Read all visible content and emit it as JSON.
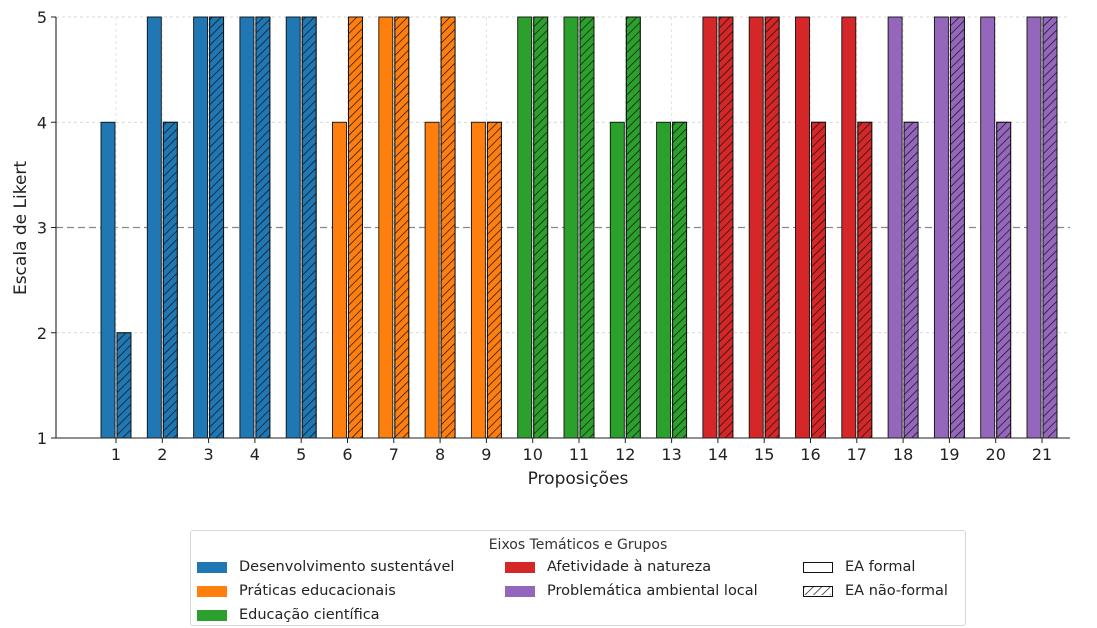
{
  "chart_data": {
    "type": "bar",
    "xlabel": "Proposições",
    "ylabel": "Escala de Likert",
    "ylim": [
      1,
      5
    ],
    "yticks": [
      1,
      2,
      3,
      4,
      5
    ],
    "reference_line": 3,
    "grid": true,
    "categories": [
      "1",
      "2",
      "3",
      "4",
      "5",
      "6",
      "7",
      "8",
      "9",
      "10",
      "11",
      "12",
      "13",
      "14",
      "15",
      "16",
      "17",
      "18",
      "19",
      "20",
      "21"
    ],
    "category_group": [
      0,
      0,
      0,
      0,
      0,
      1,
      1,
      1,
      1,
      2,
      2,
      2,
      2,
      3,
      3,
      3,
      3,
      4,
      4,
      4,
      4
    ],
    "series": [
      {
        "name": "EA formal",
        "pattern": "solid",
        "values": [
          4,
          5,
          5,
          5,
          5,
          4,
          5,
          4,
          4,
          5,
          5,
          4,
          4,
          5,
          5,
          5,
          5,
          5,
          5,
          5,
          5
        ]
      },
      {
        "name": "EA não-formal",
        "pattern": "hatched",
        "values": [
          2,
          4,
          5,
          5,
          5,
          5,
          5,
          5,
          4,
          5,
          5,
          5,
          4,
          5,
          5,
          4,
          4,
          4,
          5,
          4,
          5
        ]
      }
    ],
    "groups": [
      {
        "name": "Desenvolvimento sustentável",
        "color": "#1f77b4"
      },
      {
        "name": "Práticas educacionais",
        "color": "#ff7f0e"
      },
      {
        "name": "Educação científica",
        "color": "#2ca02c"
      },
      {
        "name": "Afetividade à natureza",
        "color": "#d62728"
      },
      {
        "name": "Problemática ambiental local",
        "color": "#9467bd"
      }
    ],
    "legend": {
      "title": "Eixos Temáticos e Grupos",
      "placement": "bottom"
    }
  }
}
